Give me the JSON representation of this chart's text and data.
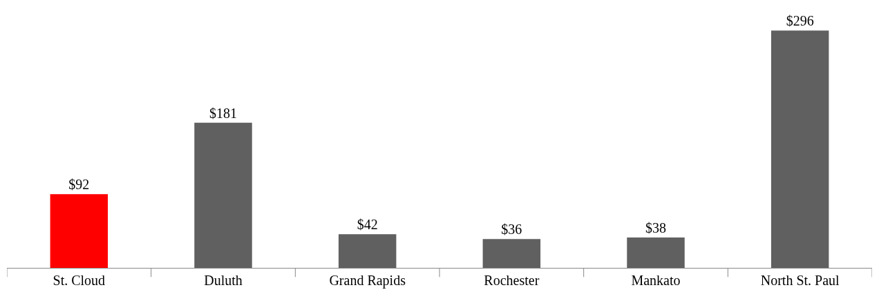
{
  "chart_data": {
    "type": "bar",
    "categories": [
      "St. Cloud",
      "Duluth",
      "Grand Rapids",
      "Rochester",
      "Mankato",
      "North St. Paul"
    ],
    "values": [
      92,
      181,
      42,
      36,
      38,
      296
    ],
    "value_labels": [
      "$92",
      "$181",
      "$42",
      "$36",
      "$38",
      "$296"
    ],
    "colors": [
      "#ff0000",
      "#606060",
      "#606060",
      "#606060",
      "#606060",
      "#606060"
    ],
    "grid": false
  }
}
